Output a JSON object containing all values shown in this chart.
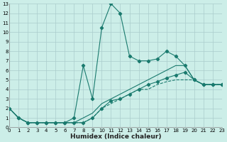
{
  "xlabel": "Humidex (Indice chaleur)",
  "bg_color": "#cceee8",
  "grid_color": "#aacccc",
  "line_color": "#1a7a6e",
  "lines": [
    {
      "x": [
        0,
        1,
        2,
        3,
        4,
        5,
        6,
        7,
        8,
        9,
        10,
        11,
        12,
        13,
        14,
        15,
        16,
        17,
        18,
        19,
        20,
        21,
        22,
        23
      ],
      "y": [
        2,
        1,
        0.5,
        0.5,
        0.5,
        0.5,
        0.5,
        0.5,
        0.5,
        1.0,
        2.0,
        2.5,
        3.0,
        3.5,
        4.0,
        4.0,
        4.5,
        4.8,
        5.0,
        5.0,
        5.0,
        4.5,
        4.5,
        4.5
      ],
      "marker": false,
      "dashed": true
    },
    {
      "x": [
        0,
        1,
        2,
        3,
        4,
        5,
        6,
        7,
        8,
        9,
        10,
        11,
        12,
        13,
        14,
        15,
        16,
        17,
        18,
        19,
        20,
        21,
        22,
        23
      ],
      "y": [
        2,
        1,
        0.5,
        0.5,
        0.5,
        0.5,
        0.5,
        0.5,
        1.0,
        1.5,
        2.5,
        3.0,
        3.5,
        4.0,
        4.5,
        5.0,
        5.5,
        6.0,
        6.5,
        6.5,
        5.0,
        4.5,
        4.5,
        4.5
      ],
      "marker": false,
      "dashed": false
    },
    {
      "x": [
        0,
        1,
        2,
        3,
        4,
        5,
        6,
        7,
        8,
        9,
        10,
        11,
        12,
        13,
        14,
        15,
        16,
        17,
        18,
        19,
        20,
        21,
        22,
        23
      ],
      "y": [
        2,
        1,
        0.5,
        0.5,
        0.5,
        0.5,
        0.5,
        1.0,
        6.5,
        3.0,
        10.5,
        13.0,
        12.0,
        7.5,
        7.0,
        7.0,
        7.2,
        8.0,
        7.5,
        6.5,
        5.0,
        4.5,
        4.5,
        4.5
      ],
      "marker": true,
      "dashed": false
    },
    {
      "x": [
        0,
        1,
        2,
        3,
        4,
        5,
        6,
        7,
        8,
        9,
        10,
        11,
        12,
        13,
        14,
        15,
        16,
        17,
        18,
        19,
        20,
        21,
        22,
        23
      ],
      "y": [
        2,
        1,
        0.5,
        0.5,
        0.5,
        0.5,
        0.5,
        0.5,
        0.5,
        1.0,
        2.0,
        2.8,
        3.0,
        3.5,
        4.0,
        4.5,
        4.8,
        5.2,
        5.5,
        5.8,
        5.0,
        4.5,
        4.5,
        4.5
      ],
      "marker": true,
      "dashed": false
    }
  ],
  "xlim": [
    0,
    23
  ],
  "ylim": [
    0,
    13
  ],
  "xticks": [
    0,
    1,
    2,
    3,
    4,
    5,
    6,
    7,
    8,
    9,
    10,
    11,
    12,
    13,
    14,
    15,
    16,
    17,
    18,
    19,
    20,
    21,
    22,
    23
  ],
  "yticks": [
    0,
    1,
    2,
    3,
    4,
    5,
    6,
    7,
    8,
    9,
    10,
    11,
    12,
    13
  ],
  "xlabel_fontsize": 6.5,
  "tick_fontsize": 5.0
}
